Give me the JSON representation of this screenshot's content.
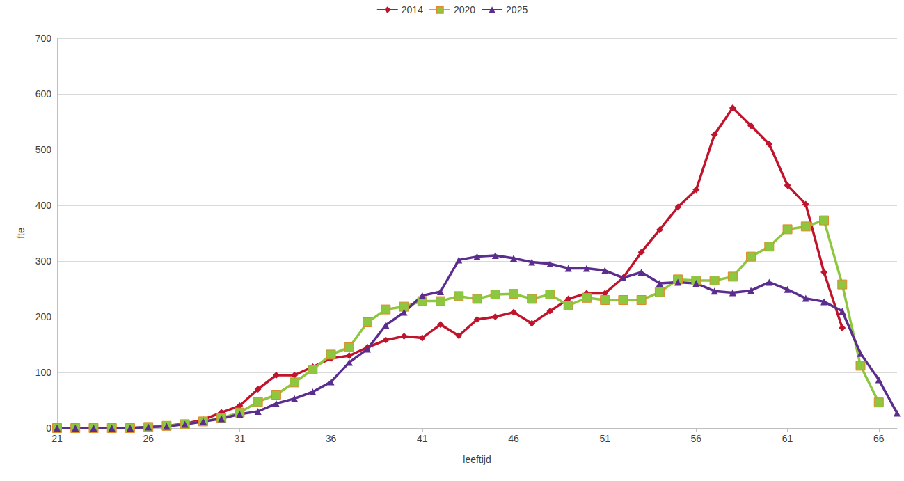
{
  "chart_data": {
    "type": "line",
    "x_label": "leeftijd",
    "y_label": "fte",
    "x": [
      21,
      22,
      23,
      24,
      25,
      26,
      27,
      28,
      29,
      30,
      31,
      32,
      33,
      34,
      35,
      36,
      37,
      38,
      39,
      40,
      41,
      42,
      43,
      44,
      45,
      46,
      47,
      48,
      49,
      50,
      51,
      52,
      53,
      54,
      55,
      56,
      57,
      58,
      59,
      60,
      61,
      62,
      63,
      64,
      65,
      66,
      67
    ],
    "series": [
      {
        "name": "2014",
        "color": "#c0142c",
        "marker": "diamond",
        "values": [
          0,
          0,
          0,
          0,
          0,
          2,
          4,
          8,
          15,
          28,
          40,
          70,
          95,
          95,
          110,
          125,
          130,
          145,
          158,
          165,
          162,
          186,
          166,
          195,
          200,
          208,
          188,
          210,
          232,
          242,
          242,
          270,
          316,
          356,
          397,
          428,
          527,
          575,
          543,
          510,
          436,
          402,
          280,
          180,
          null,
          null,
          null
        ]
      },
      {
        "name": "2020",
        "color": "#8dc63f",
        "marker": "square",
        "values": [
          0,
          0,
          0,
          0,
          0,
          2,
          4,
          7,
          12,
          18,
          28,
          47,
          60,
          82,
          105,
          132,
          145,
          190,
          213,
          218,
          228,
          228,
          237,
          232,
          240,
          241,
          232,
          240,
          220,
          234,
          230,
          230,
          230,
          244,
          267,
          265,
          265,
          272,
          308,
          326,
          357,
          362,
          373,
          258,
          112,
          46,
          null
        ]
      },
      {
        "name": "2025",
        "color": "#5b2d8e",
        "marker": "triangle",
        "values": [
          0,
          0,
          0,
          0,
          0,
          2,
          3,
          7,
          12,
          17,
          25,
          30,
          44,
          53,
          65,
          83,
          118,
          142,
          185,
          208,
          238,
          245,
          302,
          308,
          310,
          305,
          298,
          295,
          287,
          287,
          283,
          270,
          280,
          260,
          262,
          260,
          246,
          243,
          247,
          262,
          249,
          233,
          227,
          210,
          134,
          87,
          27
        ]
      }
    ],
    "xlim": [
      21,
      67
    ],
    "xticks": [
      21,
      26,
      31,
      36,
      41,
      46,
      51,
      56,
      61,
      66
    ],
    "ylim": [
      0,
      700
    ],
    "yticks": [
      0,
      100,
      200,
      300,
      400,
      500,
      600,
      700
    ],
    "grid": true,
    "legend": "top"
  }
}
